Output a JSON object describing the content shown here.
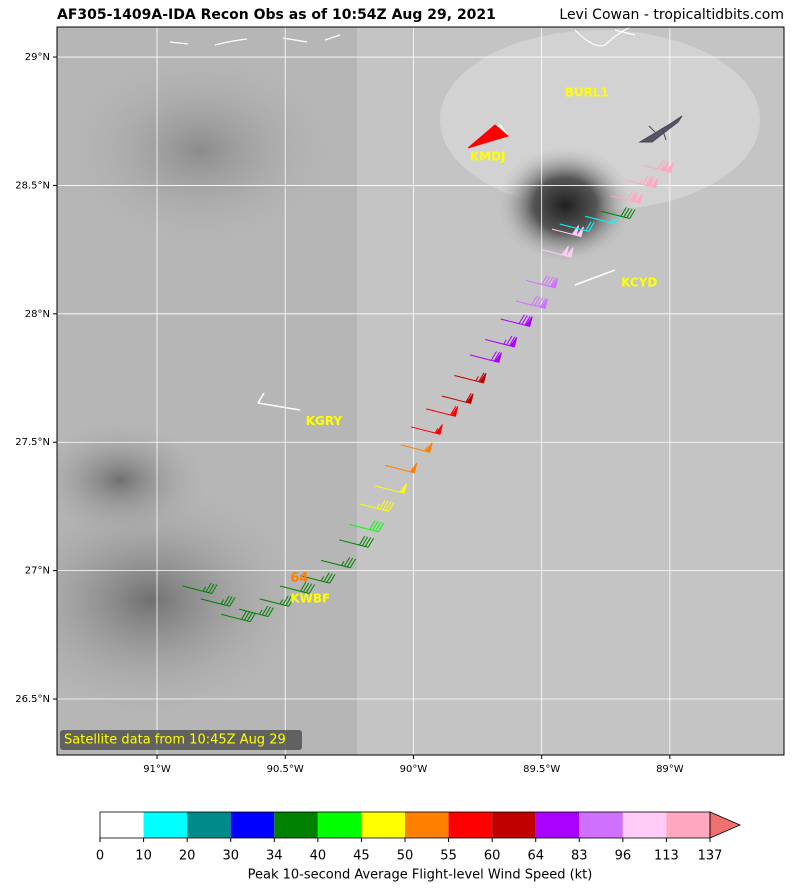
{
  "title": "AF305-1409A-IDA Recon Obs as of 10:54Z Aug 29, 2021",
  "credit": "Levi Cowan - tropicaltidbits.com",
  "map": {
    "xlim": [
      -91.39,
      -88.555
    ],
    "ylim": [
      26.282,
      29.117
    ],
    "xticks": [
      {
        "value": -91,
        "label": "91°W"
      },
      {
        "value": -90.5,
        "label": "90.5°W"
      },
      {
        "value": -90,
        "label": "90°W"
      },
      {
        "value": -89.5,
        "label": "89.5°W"
      },
      {
        "value": -89,
        "label": "89°W"
      }
    ],
    "yticks": [
      {
        "value": 26.5,
        "label": "26.5°N"
      },
      {
        "value": 27,
        "label": "27°N"
      },
      {
        "value": 27.5,
        "label": "27.5°N"
      },
      {
        "value": 28,
        "label": "28°N"
      },
      {
        "value": 28.5,
        "label": "28.5°N"
      },
      {
        "value": 29,
        "label": "29°N"
      }
    ],
    "grid": true,
    "satellite_note": "Satellite data from 10:45Z Aug 29",
    "stations": [
      {
        "name": "BURL1",
        "lon": -89.41,
        "lat": 28.86
      },
      {
        "name": "KMDJ",
        "lon": -89.78,
        "lat": 28.61
      },
      {
        "name": "KCYD",
        "lon": -89.19,
        "lat": 28.12
      },
      {
        "name": "KGRY",
        "lon": -90.42,
        "lat": 27.58
      },
      {
        "name": "KWBF",
        "lon": -90.48,
        "lat": 26.89
      }
    ],
    "peak_marker": {
      "label": "64",
      "lon": -90.48,
      "lat": 26.97
    },
    "obs": [
      {
        "lon": -90.9,
        "lat": 26.94,
        "speed": 35
      },
      {
        "lon": -90.83,
        "lat": 26.89,
        "speed": 36
      },
      {
        "lon": -90.75,
        "lat": 26.83,
        "speed": 38
      },
      {
        "lon": -90.68,
        "lat": 26.85,
        "speed": 37
      },
      {
        "lon": -90.6,
        "lat": 26.89,
        "speed": 36
      },
      {
        "lon": -90.52,
        "lat": 26.94,
        "speed": 38
      },
      {
        "lon": -90.44,
        "lat": 26.98,
        "speed": 36
      },
      {
        "lon": -90.36,
        "lat": 27.04,
        "speed": 37
      },
      {
        "lon": -90.29,
        "lat": 27.12,
        "speed": 38
      },
      {
        "lon": -90.25,
        "lat": 27.18,
        "speed": 42
      },
      {
        "lon": -90.21,
        "lat": 27.26,
        "speed": 47
      },
      {
        "lon": -90.15,
        "lat": 27.33,
        "speed": 48
      },
      {
        "lon": -90.11,
        "lat": 27.41,
        "speed": 52
      },
      {
        "lon": -90.05,
        "lat": 27.49,
        "speed": 53
      },
      {
        "lon": -90.01,
        "lat": 27.56,
        "speed": 56
      },
      {
        "lon": -89.95,
        "lat": 27.63,
        "speed": 58
      },
      {
        "lon": -89.89,
        "lat": 27.68,
        "speed": 61
      },
      {
        "lon": -89.84,
        "lat": 27.76,
        "speed": 63
      },
      {
        "lon": -89.78,
        "lat": 27.84,
        "speed": 70
      },
      {
        "lon": -89.72,
        "lat": 27.9,
        "speed": 75
      },
      {
        "lon": -89.66,
        "lat": 27.98,
        "speed": 80
      },
      {
        "lon": -89.6,
        "lat": 28.05,
        "speed": 88
      },
      {
        "lon": -89.56,
        "lat": 28.13,
        "speed": 90
      },
      {
        "lon": -89.5,
        "lat": 28.25,
        "speed": 100
      },
      {
        "lon": -89.46,
        "lat": 28.33,
        "speed": 100
      },
      {
        "lon": -89.43,
        "lat": 28.35,
        "speed": 18
      },
      {
        "lon": -89.33,
        "lat": 28.38,
        "speed": 15
      },
      {
        "lon": -89.27,
        "lat": 28.4,
        "speed": 38
      },
      {
        "lon": -89.23,
        "lat": 28.46,
        "speed": 120
      },
      {
        "lon": -89.17,
        "lat": 28.52,
        "speed": 125
      },
      {
        "lon": -89.11,
        "lat": 28.58,
        "speed": 118
      }
    ]
  },
  "colorbar": {
    "boundaries": [
      0,
      10,
      20,
      30,
      34,
      40,
      45,
      50,
      55,
      60,
      64,
      83,
      96,
      113,
      137
    ],
    "colors": [
      "#ffffff",
      "#00ffff",
      "#008b8b",
      "#0000ff",
      "#008000",
      "#00ff00",
      "#ffff00",
      "#ff7f00",
      "#ff0000",
      "#c00000",
      "#aa00ff",
      "#d070ff",
      "#ffccf8",
      "#ffa8c0"
    ],
    "extend_color": "#f07070",
    "label": "Peak 10-second Average Flight-level Wind Speed (kt)"
  }
}
